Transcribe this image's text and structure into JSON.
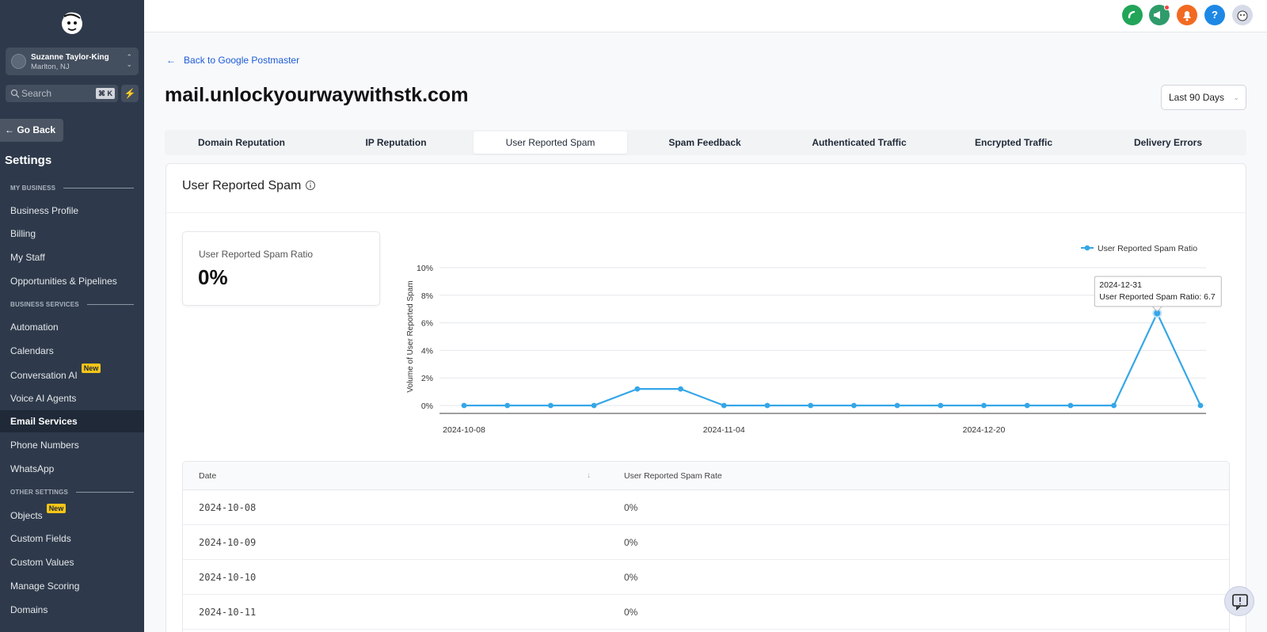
{
  "account": {
    "name": "Suzanne Taylor-King",
    "location": "Marlton, NJ"
  },
  "search": {
    "placeholder": "Search",
    "shortcut": "⌘ K"
  },
  "sidebar": {
    "go_back": "← Go Back",
    "settings_title": "Settings",
    "sections": {
      "my_business": "MY BUSINESS",
      "business_services": "BUSINESS SERVICES",
      "other_settings": "OTHER SETTINGS"
    },
    "items": [
      {
        "label": "Business Profile"
      },
      {
        "label": "Billing"
      },
      {
        "label": "My Staff"
      },
      {
        "label": "Opportunities & Pipelines"
      },
      {
        "label": "Automation"
      },
      {
        "label": "Calendars"
      },
      {
        "label": "Conversation AI",
        "badge": "New"
      },
      {
        "label": "Voice AI Agents"
      },
      {
        "label": "Email Services",
        "active": true
      },
      {
        "label": "Phone Numbers"
      },
      {
        "label": "WhatsApp"
      },
      {
        "label": "Objects",
        "badge": "New"
      },
      {
        "label": "Custom Fields"
      },
      {
        "label": "Custom Values"
      },
      {
        "label": "Manage Scoring"
      },
      {
        "label": "Domains"
      }
    ]
  },
  "header": {
    "icons": [
      "phone-icon",
      "megaphone-icon",
      "bell-icon",
      "help-icon",
      "avatar"
    ],
    "colors": {
      "phone": "#22a559",
      "megaphone": "#2f9b6b",
      "bell": "#f26a21",
      "help": "#1e88e5"
    }
  },
  "page": {
    "back_link": "Back to Google Postmaster",
    "domain": "mail.unlockyourwaywithstk.com",
    "date_range": "Last 90 Days"
  },
  "tabs": [
    {
      "label": "Domain Reputation"
    },
    {
      "label": "IP Reputation"
    },
    {
      "label": "User Reported Spam",
      "active": true
    },
    {
      "label": "Spam Feedback"
    },
    {
      "label": "Authenticated Traffic"
    },
    {
      "label": "Encrypted Traffic"
    },
    {
      "label": "Delivery Errors"
    }
  ],
  "section": {
    "title": "User Reported Spam",
    "metric_label": "User Reported Spam Ratio",
    "metric_value": "0%"
  },
  "chart_data": {
    "type": "line",
    "ylabel": "Volume of User Reported Spam",
    "legend": "User Reported Spam Ratio",
    "legend_position": "top-right",
    "color": "#35a6e8",
    "y_ticks": [
      "0%",
      "2%",
      "4%",
      "6%",
      "8%",
      "10%"
    ],
    "ylim": [
      0,
      10
    ],
    "x_tick_labels": [
      "2024-10-08",
      "2024-11-04",
      "2024-12-20"
    ],
    "x_tick_indices": [
      0,
      6,
      12
    ],
    "values": [
      0,
      0,
      0,
      0,
      1.2,
      1.2,
      0,
      0,
      0,
      0,
      0,
      0,
      0,
      0,
      0,
      0,
      6.7,
      0
    ],
    "tooltip": {
      "date": "2024-12-31",
      "text": "User Reported Spam Ratio: 6.7",
      "index": 16
    },
    "grid": true
  },
  "table": {
    "columns": [
      "Date",
      "User Reported Spam Rate"
    ],
    "rows": [
      {
        "date": "2024-10-08",
        "rate": "0%"
      },
      {
        "date": "2024-10-09",
        "rate": "0%"
      },
      {
        "date": "2024-10-10",
        "rate": "0%"
      },
      {
        "date": "2024-10-11",
        "rate": "0%"
      }
    ]
  }
}
